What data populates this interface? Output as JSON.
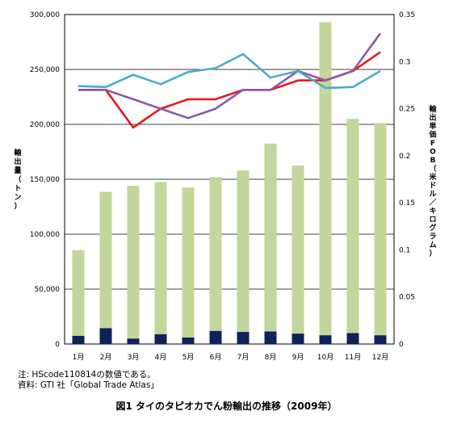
{
  "chart_data": {
    "type": "bar",
    "title": "",
    "categories": [
      "1月",
      "2月",
      "3月",
      "4月",
      "5月",
      "6月",
      "7月",
      "8月",
      "9月",
      "10月",
      "11月",
      "12月"
    ],
    "bar_series": [
      {
        "values": [
          7500,
          14500,
          5000,
          9000,
          6000,
          12000,
          11000,
          11500,
          9500,
          8000,
          10000,
          8000
        ],
        "color": "#0d2258"
      },
      {
        "values": [
          78000,
          124000,
          139000,
          138500,
          136500,
          140000,
          147000,
          171000,
          153000,
          285000,
          195000,
          193000
        ],
        "color": "#c3d69b"
      }
    ],
    "line_series": [
      {
        "values": [
          0.27,
          0.27,
          0.23,
          0.25,
          0.26,
          0.26,
          0.27,
          0.27,
          0.28,
          0.28,
          0.29,
          0.31
        ],
        "color": "#e41a1a"
      },
      {
        "values": [
          0.27,
          0.27,
          0.26,
          0.25,
          0.24,
          0.25,
          0.27,
          0.27,
          0.29,
          0.28,
          0.29,
          0.33
        ],
        "color": "#8a59a8"
      },
      {
        "values": [
          0.274,
          0.273,
          0.286,
          0.276,
          0.289,
          0.293,
          0.308,
          0.283,
          0.29,
          0.272,
          0.273,
          0.29
        ],
        "color": "#4bacc6"
      }
    ],
    "y_left": {
      "label": "輸出量（トン）",
      "min": 0,
      "max": 300000,
      "ticks": [
        0,
        50000,
        100000,
        150000,
        200000,
        250000,
        300000
      ],
      "tick_labels": [
        "0",
        "50,000",
        "100,000",
        "150,000",
        "200,000",
        "250,000",
        "300,000"
      ]
    },
    "y_right": {
      "label": "輸出単価FOB（米ドル／キログラム）",
      "min": 0,
      "max": 0.35,
      "ticks": [
        0,
        0.05,
        0.1,
        0.15,
        0.2,
        0.25,
        0.3,
        0.35
      ],
      "tick_labels": [
        "0",
        "0.05",
        "0.1",
        "0.15",
        "0.2",
        "0.25",
        "0.3",
        "0.35"
      ]
    },
    "grid": "horizontal",
    "legend": "none"
  },
  "notes": {
    "note1": "注: HScode110814の数値である。",
    "source": "資料: GTI 社「Global Trade Atlas」"
  },
  "caption": "図1 タイのタピオカでん粉輸出の推移（2009年）"
}
